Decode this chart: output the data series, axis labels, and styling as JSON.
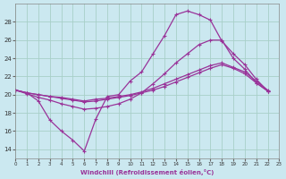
{
  "xlabel": "Windchill (Refroidissement éolien,°C)",
  "background_color": "#cbe8f0",
  "grid_color": "#a8cfc8",
  "line_color": "#993399",
  "xlim": [
    0,
    23
  ],
  "ylim": [
    13,
    30
  ],
  "yticks": [
    14,
    16,
    18,
    20,
    22,
    24,
    26,
    28
  ],
  "xticks": [
    0,
    1,
    2,
    3,
    4,
    5,
    6,
    7,
    8,
    9,
    10,
    11,
    12,
    13,
    14,
    15,
    16,
    17,
    18,
    19,
    20,
    21,
    22,
    23
  ],
  "series": [
    [
      20.5,
      20.2,
      19.3,
      17.2,
      16.0,
      15.0,
      13.8,
      17.3,
      19.8,
      20.0,
      21.5,
      22.5,
      24.5,
      26.5,
      28.8,
      29.2,
      28.8,
      28.2,
      25.9,
      24.5,
      23.3,
      21.7,
      20.4
    ],
    [
      20.5,
      20.1,
      19.7,
      19.4,
      19.0,
      18.7,
      18.4,
      18.5,
      18.7,
      19.0,
      19.5,
      20.2,
      21.2,
      22.3,
      23.5,
      24.5,
      25.5,
      26.0,
      26.0,
      24.0,
      22.8,
      21.3,
      20.4
    ],
    [
      20.5,
      20.2,
      20.0,
      19.8,
      19.7,
      19.5,
      19.3,
      19.5,
      19.6,
      19.8,
      20.0,
      20.3,
      20.7,
      21.2,
      21.7,
      22.2,
      22.7,
      23.2,
      23.5,
      23.0,
      22.5,
      21.5,
      20.5
    ],
    [
      20.5,
      20.2,
      20.0,
      19.8,
      19.6,
      19.4,
      19.2,
      19.3,
      19.5,
      19.7,
      19.9,
      20.2,
      20.5,
      20.9,
      21.4,
      21.9,
      22.4,
      22.9,
      23.3,
      22.9,
      22.3,
      21.3,
      20.4
    ]
  ]
}
